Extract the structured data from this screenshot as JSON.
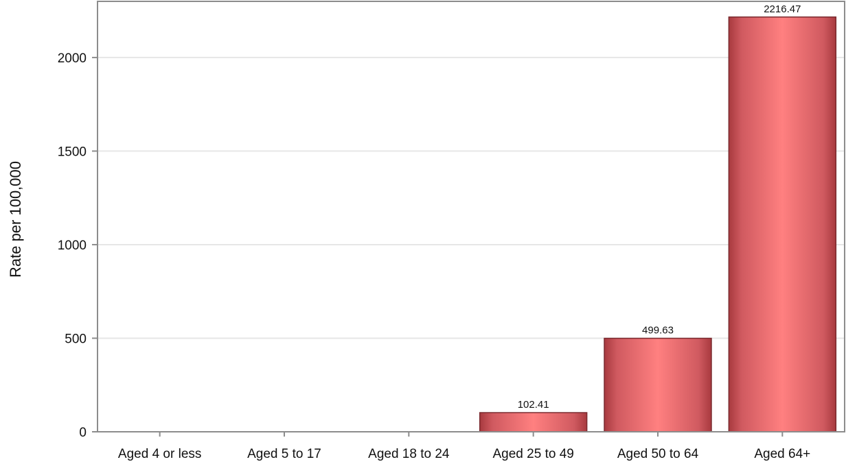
{
  "chart_data": {
    "type": "bar",
    "title": "",
    "xlabel": "",
    "ylabel": "Rate per 100,000",
    "categories": [
      "Aged 4 or less",
      "Aged 5 to 17",
      "Aged 18 to 24",
      "Aged 25 to 49",
      "Aged 50 to 64",
      "Aged 64+"
    ],
    "values": [
      0,
      0,
      0,
      102.41,
      499.63,
      2216.47
    ],
    "data_labels": [
      "",
      "",
      "",
      "102.41",
      "499.63",
      "2216.47"
    ],
    "ylim": [
      0,
      2300
    ],
    "y_ticks": [
      0,
      500,
      1000,
      1500,
      2000
    ],
    "y_tick_labels": [
      "0",
      "500",
      "1000",
      "1500",
      "2000"
    ],
    "grid": true,
    "legend": "none"
  },
  "colors": {
    "bar_center": "#ff8080",
    "bar_edge": "#a83a3f",
    "bar_stroke": "#7a2a2f",
    "grid": "#e6e6e6",
    "frame": "#8c8c8c"
  }
}
